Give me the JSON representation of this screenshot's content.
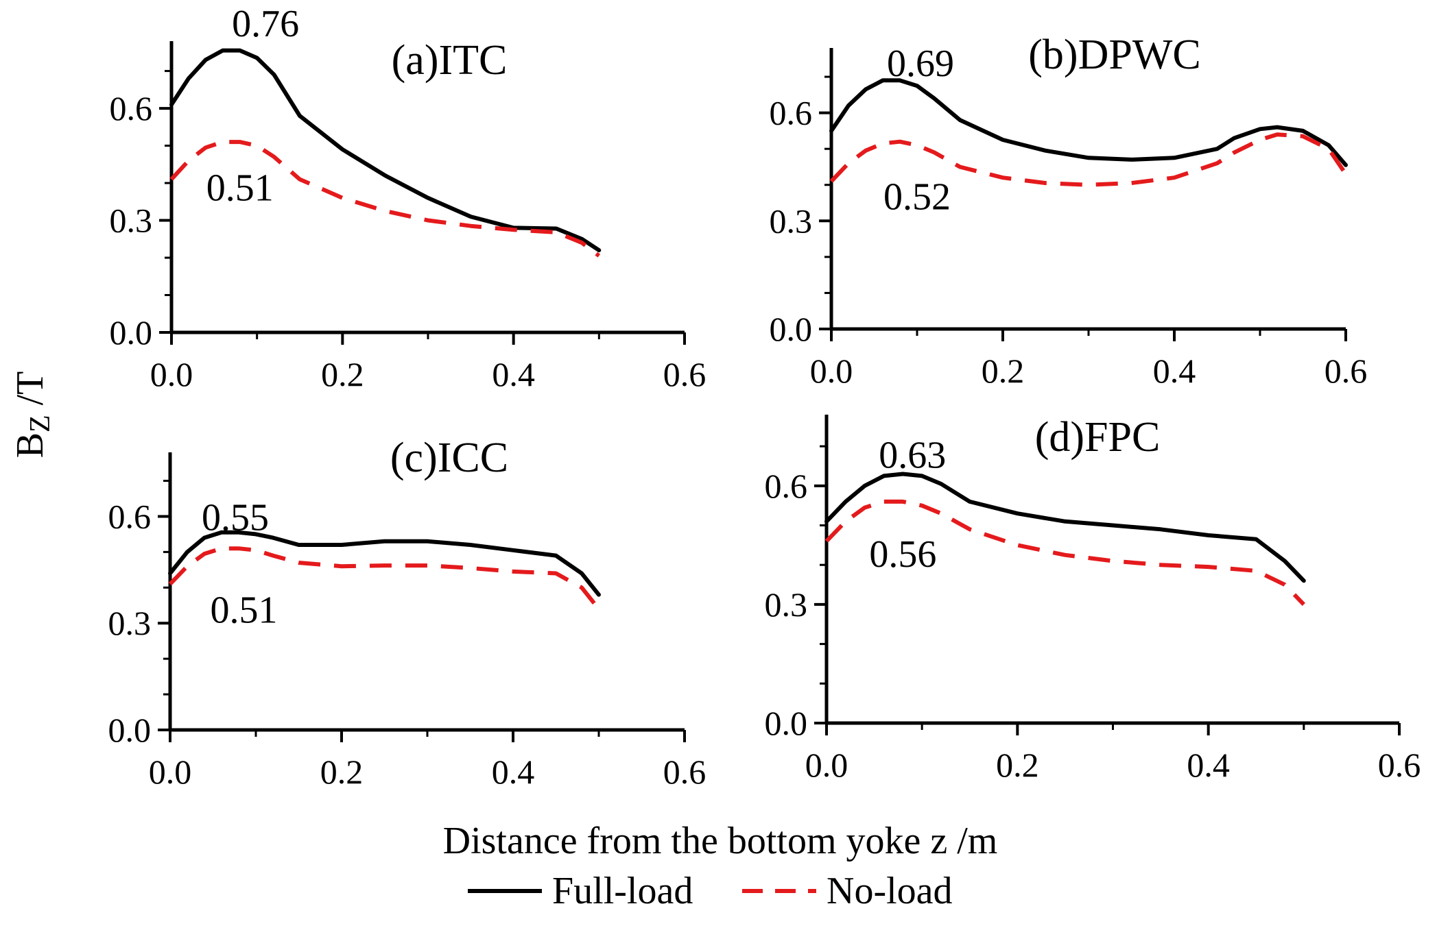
{
  "chart_data": [
    {
      "type": "line",
      "title": "(a)ITC",
      "xlim": [
        0,
        0.6
      ],
      "ylim": [
        0,
        0.78
      ],
      "xticks": [
        "0.0",
        "0.2",
        "0.4",
        "0.6"
      ],
      "yticks": [
        "0.0",
        "0.3",
        "0.6"
      ],
      "series": [
        {
          "name": "Full-load",
          "color": "#000000",
          "x": [
            0,
            0.02,
            0.04,
            0.06,
            0.08,
            0.1,
            0.12,
            0.15,
            0.2,
            0.25,
            0.3,
            0.35,
            0.4,
            0.45,
            0.48,
            0.5
          ],
          "values": [
            0.61,
            0.68,
            0.73,
            0.755,
            0.755,
            0.735,
            0.69,
            0.58,
            0.49,
            0.42,
            0.36,
            0.31,
            0.28,
            0.278,
            0.25,
            0.22
          ]
        },
        {
          "name": "No-load",
          "color": "#e41a1c",
          "x": [
            0,
            0.02,
            0.04,
            0.06,
            0.08,
            0.1,
            0.12,
            0.15,
            0.2,
            0.25,
            0.3,
            0.35,
            0.4,
            0.45,
            0.48,
            0.5
          ],
          "values": [
            0.41,
            0.46,
            0.495,
            0.51,
            0.51,
            0.5,
            0.47,
            0.41,
            0.36,
            0.325,
            0.3,
            0.285,
            0.275,
            0.268,
            0.24,
            0.205
          ]
        }
      ],
      "annotations": [
        {
          "text": "0.76",
          "x": 0.11,
          "y": 0.83
        },
        {
          "text": "0.51",
          "x": 0.08,
          "y": 0.39
        }
      ]
    },
    {
      "type": "line",
      "title": "(b)DPWC",
      "xlim": [
        0,
        0.6
      ],
      "ylim": [
        0,
        0.78
      ],
      "xticks": [
        "0.0",
        "0.2",
        "0.4",
        "0.6"
      ],
      "yticks": [
        "0.0",
        "0.3",
        "0.6"
      ],
      "series": [
        {
          "name": "Full-load",
          "color": "#000000",
          "x": [
            0,
            0.02,
            0.04,
            0.06,
            0.08,
            0.1,
            0.12,
            0.15,
            0.2,
            0.25,
            0.3,
            0.35,
            0.4,
            0.45,
            0.47,
            0.5,
            0.52,
            0.55,
            0.58,
            0.6
          ],
          "values": [
            0.55,
            0.62,
            0.665,
            0.69,
            0.69,
            0.675,
            0.64,
            0.58,
            0.525,
            0.495,
            0.475,
            0.47,
            0.475,
            0.5,
            0.53,
            0.555,
            0.56,
            0.55,
            0.51,
            0.455
          ]
        },
        {
          "name": "No-load",
          "color": "#e41a1c",
          "x": [
            0,
            0.02,
            0.04,
            0.06,
            0.08,
            0.1,
            0.12,
            0.15,
            0.2,
            0.25,
            0.3,
            0.35,
            0.4,
            0.45,
            0.47,
            0.5,
            0.52,
            0.55,
            0.58,
            0.6
          ],
          "values": [
            0.41,
            0.46,
            0.495,
            0.515,
            0.52,
            0.51,
            0.49,
            0.45,
            0.42,
            0.405,
            0.4,
            0.405,
            0.42,
            0.46,
            0.49,
            0.525,
            0.54,
            0.535,
            0.5,
            0.43
          ]
        }
      ],
      "annotations": [
        {
          "text": "0.69",
          "x": 0.104,
          "y": 0.74
        },
        {
          "text": "0.52",
          "x": 0.1,
          "y": 0.37
        }
      ]
    },
    {
      "type": "line",
      "title": "(c)ICC",
      "xlim": [
        0,
        0.6
      ],
      "ylim": [
        0,
        0.78
      ],
      "xticks": [
        "0.0",
        "0.2",
        "0.4",
        "0.6"
      ],
      "yticks": [
        "0.0",
        "0.3",
        "0.6"
      ],
      "series": [
        {
          "name": "Full-load",
          "color": "#000000",
          "x": [
            0,
            0.02,
            0.04,
            0.06,
            0.08,
            0.1,
            0.12,
            0.15,
            0.2,
            0.25,
            0.3,
            0.35,
            0.4,
            0.45,
            0.48,
            0.5
          ],
          "values": [
            0.44,
            0.5,
            0.54,
            0.555,
            0.555,
            0.55,
            0.54,
            0.52,
            0.52,
            0.53,
            0.53,
            0.52,
            0.505,
            0.49,
            0.44,
            0.38
          ]
        },
        {
          "name": "No-load",
          "color": "#e41a1c",
          "x": [
            0,
            0.02,
            0.04,
            0.06,
            0.08,
            0.1,
            0.12,
            0.15,
            0.2,
            0.25,
            0.3,
            0.35,
            0.4,
            0.45,
            0.48,
            0.5
          ],
          "values": [
            0.41,
            0.46,
            0.495,
            0.51,
            0.51,
            0.505,
            0.49,
            0.47,
            0.46,
            0.462,
            0.462,
            0.455,
            0.445,
            0.44,
            0.4,
            0.34
          ]
        }
      ],
      "annotations": [
        {
          "text": "0.55",
          "x": 0.076,
          "y": 0.6
        },
        {
          "text": "0.51",
          "x": 0.086,
          "y": 0.34
        }
      ]
    },
    {
      "type": "line",
      "title": "(d)FPC",
      "xlim": [
        0,
        0.6
      ],
      "ylim": [
        0,
        0.78
      ],
      "xticks": [
        "0.0",
        "0.2",
        "0.4",
        "0.6"
      ],
      "yticks": [
        "0.0",
        "0.3",
        "0.6"
      ],
      "series": [
        {
          "name": "Full-load",
          "color": "#000000",
          "x": [
            0,
            0.02,
            0.04,
            0.06,
            0.08,
            0.1,
            0.12,
            0.15,
            0.2,
            0.25,
            0.3,
            0.35,
            0.4,
            0.45,
            0.48,
            0.5
          ],
          "values": [
            0.51,
            0.56,
            0.6,
            0.625,
            0.63,
            0.625,
            0.605,
            0.56,
            0.53,
            0.51,
            0.5,
            0.49,
            0.475,
            0.465,
            0.41,
            0.36
          ]
        },
        {
          "name": "No-load",
          "color": "#e41a1c",
          "x": [
            0,
            0.02,
            0.04,
            0.06,
            0.08,
            0.1,
            0.12,
            0.15,
            0.2,
            0.25,
            0.3,
            0.35,
            0.4,
            0.45,
            0.48,
            0.5
          ],
          "values": [
            0.46,
            0.51,
            0.545,
            0.56,
            0.56,
            0.55,
            0.53,
            0.49,
            0.45,
            0.425,
            0.41,
            0.4,
            0.395,
            0.385,
            0.35,
            0.3
          ]
        }
      ],
      "annotations": [
        {
          "text": "0.63",
          "x": 0.09,
          "y": 0.68
        },
        {
          "text": "0.56",
          "x": 0.08,
          "y": 0.43
        }
      ]
    }
  ],
  "ylabel": {
    "main": "B",
    "sub": "Z",
    "unit": " /T"
  },
  "xlabel": "Distance from the bottom yoke z /m",
  "legend": [
    {
      "label": "Full-load",
      "color": "#000000",
      "style": "solid"
    },
    {
      "label": "No-load",
      "color": "#e41a1c",
      "style": "dashed"
    }
  ]
}
